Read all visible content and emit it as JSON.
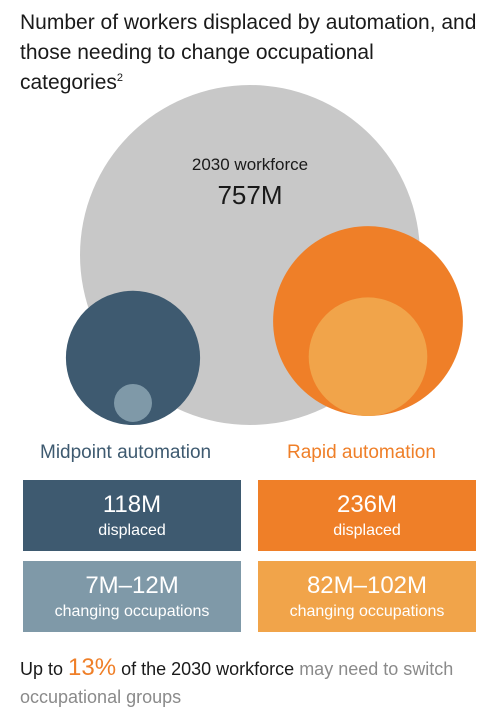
{
  "title": {
    "main": "Number of workers displaced by automation, and those needing to change occupational categories",
    "footnote": "2"
  },
  "chart_data": {
    "type": "bubble",
    "title": "Number of workers displaced by automation, and those needing to change occupational categories",
    "workforce": {
      "label": "2030 workforce",
      "value_label": "757M",
      "value": 757
    },
    "scenarios": [
      {
        "name": "Midpoint automation",
        "color": "#3e5a70",
        "light_color": "#7f99a8",
        "displaced": {
          "value": 118,
          "value_label": "118M",
          "label": "displaced"
        },
        "changing": {
          "low": 7,
          "high": 12,
          "value_label": "7M–12M",
          "label": "changing occupations"
        }
      },
      {
        "name": "Rapid automation",
        "color": "#ef7f28",
        "light_color": "#f1a44a",
        "displaced": {
          "value": 236,
          "value_label": "236M",
          "label": "displaced"
        },
        "changing": {
          "low": 82,
          "high": 102,
          "value_label": "82M–102M",
          "label": "changing occupations"
        }
      }
    ]
  },
  "footer": {
    "prefix": "Up to ",
    "percent": "13%",
    "middle": " of the 2030 workforce",
    "suffix": " may need to switch occupational groups"
  },
  "colors": {
    "workforce": "#c8c8c8",
    "midpoint": "#3e5a70",
    "midpoint_light": "#7f99a8",
    "rapid": "#ef7f28",
    "rapid_light": "#f1a44a"
  }
}
